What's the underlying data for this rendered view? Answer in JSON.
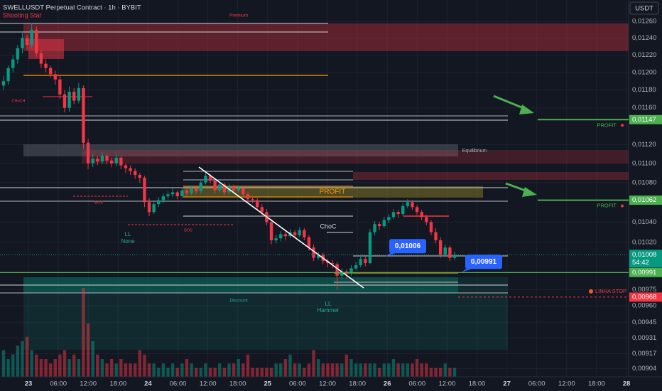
{
  "chart_data": {
    "type": "candlestick",
    "title": "SWELLUSDT Perpetual Contract · 1h · BYBIT",
    "currency": "USDT",
    "log_scale": true,
    "ylim": [
      0.00897,
      0.01286
    ],
    "yticks": [
      {
        "value": 0.0126,
        "label": "0,01260"
      },
      {
        "value": 0.0124,
        "label": "0,01240"
      },
      {
        "value": 0.0122,
        "label": "0,01220"
      },
      {
        "value": 0.012,
        "label": "0,01200"
      },
      {
        "value": 0.0118,
        "label": "0,01180"
      },
      {
        "value": 0.0116,
        "label": "0,01160"
      },
      {
        "value": 0.0112,
        "label": "0,01120"
      },
      {
        "value": 0.011,
        "label": "0,01100"
      },
      {
        "value": 0.0108,
        "label": "0,01080"
      },
      {
        "value": 0.0104,
        "label": "0,01040"
      },
      {
        "value": 0.0102,
        "label": "0,01020"
      },
      {
        "value": 0.00975,
        "label": "0,00975"
      },
      {
        "value": 0.0096,
        "label": "0,00960"
      },
      {
        "value": 0.00945,
        "label": "0,00945"
      },
      {
        "value": 0.00931,
        "label": "0,00931"
      },
      {
        "value": 0.00917,
        "label": "0,00917"
      },
      {
        "value": 0.00904,
        "label": "0,00904"
      }
    ],
    "x_labels": [
      "23",
      "06:00",
      "12:00",
      "18:00",
      "24",
      "06:00",
      "12:00",
      "18:00",
      "25",
      "06:00",
      "12:00",
      "18:00",
      "26",
      "06:00",
      "12:00",
      "18:00",
      "27",
      "06:00",
      "12:00",
      "18:00",
      "28"
    ],
    "grid": true,
    "up_color": "#089981",
    "down_color": "#f23645",
    "ohlc": [
      [
        0.01185,
        0.01196,
        0.0118,
        0.0119
      ],
      [
        0.0119,
        0.01208,
        0.01186,
        0.01205
      ],
      [
        0.01205,
        0.0122,
        0.012,
        0.01215
      ],
      [
        0.01215,
        0.01232,
        0.0121,
        0.01228
      ],
      [
        0.01228,
        0.01246,
        0.01222,
        0.0124
      ],
      [
        0.0124,
        0.01244,
        0.01226,
        0.01232
      ],
      [
        0.01232,
        0.01258,
        0.01228,
        0.0125
      ],
      [
        0.0125,
        0.01254,
        0.01218,
        0.01222
      ],
      [
        0.01222,
        0.01226,
        0.01205,
        0.0121
      ],
      [
        0.0121,
        0.01215,
        0.012,
        0.01205
      ],
      [
        0.01205,
        0.01208,
        0.01194,
        0.01198
      ],
      [
        0.01198,
        0.01202,
        0.01186,
        0.01192
      ],
      [
        0.01192,
        0.01196,
        0.0117,
        0.01175
      ],
      [
        0.01175,
        0.0118,
        0.01155,
        0.0116
      ],
      [
        0.0116,
        0.01184,
        0.01156,
        0.01178
      ],
      [
        0.01178,
        0.01182,
        0.01164,
        0.01168
      ],
      [
        0.01168,
        0.01188,
        0.01165,
        0.01182
      ],
      [
        0.01182,
        0.01185,
        0.01115,
        0.01122
      ],
      [
        0.01122,
        0.01126,
        0.01094,
        0.011
      ],
      [
        0.011,
        0.0111,
        0.01096,
        0.01105
      ],
      [
        0.01105,
        0.01108,
        0.01098,
        0.01102
      ],
      [
        0.01102,
        0.01112,
        0.01099,
        0.01108
      ],
      [
        0.01108,
        0.0111,
        0.01099,
        0.01103
      ],
      [
        0.01103,
        0.01106,
        0.01096,
        0.011
      ],
      [
        0.011,
        0.0111,
        0.01097,
        0.01106
      ],
      [
        0.01106,
        0.01108,
        0.01094,
        0.01098
      ],
      [
        0.01098,
        0.011,
        0.0109,
        0.01095
      ],
      [
        0.01095,
        0.01098,
        0.01088,
        0.01092
      ],
      [
        0.01092,
        0.01095,
        0.01084,
        0.01088
      ],
      [
        0.01088,
        0.0109,
        0.0108,
        0.01085
      ],
      [
        0.01085,
        0.01087,
        0.01055,
        0.0106
      ],
      [
        0.0106,
        0.01064,
        0.01046,
        0.0105
      ],
      [
        0.0105,
        0.01061,
        0.01048,
        0.01058
      ],
      [
        0.01058,
        0.01065,
        0.01055,
        0.01062
      ],
      [
        0.01062,
        0.01069,
        0.01059,
        0.01066
      ],
      [
        0.01066,
        0.01071,
        0.01063,
        0.01068
      ],
      [
        0.01068,
        0.01074,
        0.01065,
        0.0107
      ],
      [
        0.0107,
        0.01072,
        0.01063,
        0.01066
      ],
      [
        0.01066,
        0.01075,
        0.01064,
        0.01072
      ],
      [
        0.01072,
        0.01074,
        0.01066,
        0.01069
      ],
      [
        0.01069,
        0.01077,
        0.01067,
        0.01074
      ],
      [
        0.01074,
        0.01076,
        0.01068,
        0.01071
      ],
      [
        0.01071,
        0.01083,
        0.01069,
        0.0108
      ],
      [
        0.0108,
        0.0109,
        0.01078,
        0.01087
      ],
      [
        0.01087,
        0.01089,
        0.01079,
        0.01082
      ],
      [
        0.01082,
        0.01084,
        0.01069,
        0.01072
      ],
      [
        0.01072,
        0.01081,
        0.0107,
        0.01078
      ],
      [
        0.01078,
        0.0108,
        0.01067,
        0.0107
      ],
      [
        0.0107,
        0.01079,
        0.01068,
        0.01076
      ],
      [
        0.01076,
        0.01078,
        0.01069,
        0.01072
      ],
      [
        0.01072,
        0.01077,
        0.0107,
        0.01074
      ],
      [
        0.01074,
        0.01076,
        0.01065,
        0.01068
      ],
      [
        0.01068,
        0.0107,
        0.0106,
        0.01063
      ],
      [
        0.01063,
        0.01066,
        0.01059,
        0.01062
      ],
      [
        0.01062,
        0.01064,
        0.01052,
        0.01055
      ],
      [
        0.01055,
        0.01058,
        0.01047,
        0.0105
      ],
      [
        0.0105,
        0.01053,
        0.01037,
        0.0104
      ],
      [
        0.0104,
        0.01043,
        0.01018,
        0.01022
      ],
      [
        0.01022,
        0.01027,
        0.01019,
        0.01024
      ],
      [
        0.01024,
        0.01031,
        0.01021,
        0.01028
      ],
      [
        0.01028,
        0.0103,
        0.01022,
        0.01026
      ],
      [
        0.01026,
        0.01033,
        0.01024,
        0.0103
      ],
      [
        0.0103,
        0.01032,
        0.01024,
        0.01027
      ],
      [
        0.01027,
        0.01035,
        0.01025,
        0.01032
      ],
      [
        0.01032,
        0.01034,
        0.01022,
        0.01025
      ],
      [
        0.01025,
        0.01027,
        0.01012,
        0.01015
      ],
      [
        0.01015,
        0.01018,
        0.01002,
        0.01005
      ],
      [
        0.01005,
        0.01011,
        0.01003,
        0.01008
      ],
      [
        0.01008,
        0.0101,
        0.00999,
        0.01002
      ],
      [
        0.01002,
        0.01004,
        0.00996,
        0.01
      ],
      [
        0.01,
        0.01003,
        0.00995,
        0.00999
      ],
      [
        0.00999,
        0.01001,
        0.00975,
        0.00988
      ],
      [
        0.00988,
        0.00995,
        0.00985,
        0.00992
      ],
      [
        0.00992,
        0.00994,
        0.00986,
        0.0099
      ],
      [
        0.0099,
        0.00998,
        0.00988,
        0.00995
      ],
      [
        0.00995,
        0.01001,
        0.00993,
        0.00998
      ],
      [
        0.00998,
        0.01007,
        0.00996,
        0.01004
      ],
      [
        0.01004,
        0.01006,
        0.00997,
        0.01
      ],
      [
        0.01,
        0.01033,
        0.00999,
        0.0103
      ],
      [
        0.0103,
        0.01041,
        0.01027,
        0.01038
      ],
      [
        0.01038,
        0.0104,
        0.01032,
        0.01036
      ],
      [
        0.01036,
        0.01045,
        0.01034,
        0.01042
      ],
      [
        0.01042,
        0.01048,
        0.01039,
        0.01045
      ],
      [
        0.01045,
        0.01053,
        0.01043,
        0.0105
      ],
      [
        0.0105,
        0.01052,
        0.01044,
        0.01048
      ],
      [
        0.01048,
        0.01059,
        0.01046,
        0.01056
      ],
      [
        0.01056,
        0.01063,
        0.01054,
        0.0106
      ],
      [
        0.0106,
        0.01062,
        0.01052,
        0.01055
      ],
      [
        0.01055,
        0.01057,
        0.01047,
        0.0105
      ],
      [
        0.0105,
        0.01052,
        0.01042,
        0.01045
      ],
      [
        0.01045,
        0.01047,
        0.01037,
        0.0104
      ],
      [
        0.0104,
        0.01042,
        0.01027,
        0.0103
      ],
      [
        0.0103,
        0.01034,
        0.01019,
        0.01022
      ],
      [
        0.01022,
        0.01025,
        0.01005,
        0.01008
      ],
      [
        0.01008,
        0.01018,
        0.01006,
        0.01015
      ],
      [
        0.01015,
        0.01017,
        0.01002,
        0.01005
      ],
      [
        0.01005,
        0.01011,
        0.01003,
        0.01008
      ]
    ],
    "volume": [
      6,
      4,
      5,
      7,
      8,
      9,
      6,
      5,
      4,
      4,
      3,
      4,
      5,
      6,
      4,
      5,
      4,
      20,
      12,
      8,
      5,
      4,
      3,
      4,
      3,
      4,
      3,
      3,
      3,
      6,
      5,
      3,
      3,
      2,
      3,
      2,
      3,
      2,
      3,
      4,
      3,
      2,
      2,
      3,
      2,
      2,
      3,
      2,
      3,
      3,
      4,
      3,
      5,
      2,
      2,
      2,
      2,
      2,
      3,
      3,
      4,
      5,
      3,
      3,
      2,
      3,
      6,
      4,
      3,
      3,
      3,
      3,
      3,
      5,
      4,
      3,
      3,
      3,
      3,
      3,
      2,
      3,
      3,
      4,
      3,
      3,
      3,
      3,
      4,
      3,
      3,
      2,
      2,
      2,
      3,
      2,
      2
    ],
    "levels": [
      {
        "value": 0.01147,
        "label": "0,01147",
        "text": "PROFIT",
        "color": "#4caf50"
      },
      {
        "value": 0.01062,
        "label": "0,01062",
        "text": "PROFIT",
        "color": "#4caf50"
      },
      {
        "value": 0.00991,
        "label": "0,00991",
        "color": "#4caf50"
      },
      {
        "value": 0.00968,
        "label": "0,00968",
        "text": "LINHA STOP",
        "color": "#f23645"
      }
    ],
    "last_price": {
      "value": 0.01008,
      "label": "0,01008",
      "countdown": "54:42",
      "color": "#089981"
    },
    "callouts": [
      {
        "value": 0.01006,
        "label": "0,01006"
      },
      {
        "value": 0.00991,
        "label": "0,00991"
      }
    ],
    "annotations": {
      "shooting_star": "Shooting Star",
      "premium": "Premium",
      "choch": "CHoCH",
      "bos_1": "BOS",
      "bos_2": "BOS",
      "ll_1": "LL",
      "none": "None",
      "choc": "ChoC",
      "profit_zone": "PROFIT",
      "equilibrium": "Equilibrium",
      "discount": "Discount",
      "ll_2": "LL",
      "hammer": "Hammer"
    }
  }
}
